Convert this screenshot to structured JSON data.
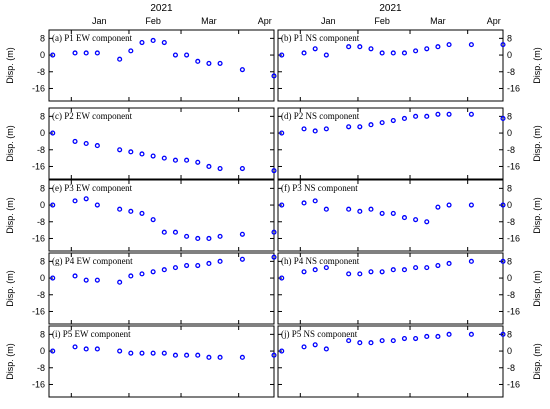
{
  "chart_data": {
    "type": "scatter",
    "year_label": "2021",
    "x_ticks": [
      "Jan",
      "Feb",
      "Mar",
      "Apr"
    ],
    "xlim": [
      "2020-12-20",
      "2021-04-20"
    ],
    "ylabel": "Disp. (m)",
    "y_ticks": [
      "8",
      "0",
      "-8",
      "-16"
    ],
    "ylim": [
      -22,
      12
    ],
    "dates": [
      "2020-12-22",
      "2021-01-03",
      "2021-01-09",
      "2021-01-15",
      "2021-01-27",
      "2021-02-02",
      "2021-02-08",
      "2021-02-14",
      "2021-02-20",
      "2021-02-26",
      "2021-03-04",
      "2021-03-10",
      "2021-03-16",
      "2021-03-22",
      "2021-04-03",
      "2021-04-20"
    ],
    "panels": [
      {
        "title": "(a) P1 EW component",
        "side": "left",
        "values": [
          0,
          1,
          1,
          1,
          -2,
          2,
          6,
          7,
          6,
          0,
          0,
          -3,
          -4,
          -4,
          -7,
          -10
        ]
      },
      {
        "title": "(b) P1 NS component",
        "side": "right",
        "values": [
          0,
          1,
          3,
          0,
          4,
          4,
          3,
          1,
          1,
          1,
          2,
          3,
          4,
          5,
          5,
          5
        ]
      },
      {
        "title": "(c) P2 EW component",
        "side": "left",
        "values": [
          0,
          -4,
          -5,
          -6,
          -8,
          -9,
          -10,
          -11,
          -12,
          -13,
          -13,
          -14,
          -16,
          -17,
          -17,
          -18
        ]
      },
      {
        "title": "(d) P2 NS component",
        "side": "right",
        "values": [
          0,
          2,
          1,
          2,
          3,
          3,
          4,
          5,
          6,
          7,
          8,
          8,
          9,
          9,
          9,
          7
        ]
      },
      {
        "title": "(e) P3 EW component",
        "side": "left",
        "values": [
          0,
          2,
          3,
          0,
          -2,
          -3,
          -4,
          -7,
          -13,
          -13,
          -15,
          -16,
          -16,
          -15,
          -14,
          -13
        ]
      },
      {
        "title": "(f) P3 NS component",
        "side": "right",
        "values": [
          0,
          1,
          2,
          -2,
          -2,
          -3,
          -2,
          -4,
          -4,
          -6,
          -7,
          -8,
          -1,
          0,
          0,
          0
        ]
      },
      {
        "title": "(g) P4 EW component",
        "side": "left",
        "values": [
          0,
          1,
          -1,
          -1,
          -2,
          1,
          2,
          3,
          4,
          5,
          6,
          6,
          7,
          8,
          9,
          10
        ]
      },
      {
        "title": "(h) P4 NS component",
        "side": "right",
        "values": [
          0,
          3,
          4,
          5,
          2,
          2,
          3,
          3,
          4,
          4,
          5,
          5,
          6,
          7,
          8,
          8
        ]
      },
      {
        "title": "(i) P5 EW component",
        "side": "left",
        "values": [
          0,
          2,
          1,
          1,
          0,
          -1,
          -1,
          -1,
          -1,
          -2,
          -2,
          -2,
          -3,
          -3,
          -3,
          -2
        ]
      },
      {
        "title": "(j) P5 NS component",
        "side": "right",
        "values": [
          0,
          2,
          3,
          1,
          5,
          4,
          4,
          5,
          5,
          6,
          6,
          7,
          7,
          8,
          8,
          8
        ]
      }
    ]
  }
}
